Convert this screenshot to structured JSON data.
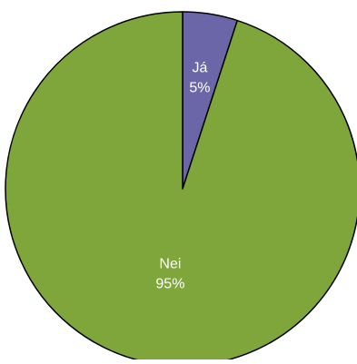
{
  "chart_data": {
    "type": "pie",
    "start_angle_deg": 0,
    "direction": "clockwise",
    "slices": [
      {
        "label": "Já",
        "value": 5,
        "value_label": "5%",
        "color": "#6A66A8"
      },
      {
        "label": "Nei",
        "value": 95,
        "value_label": "95%",
        "color": "#7FA63A"
      }
    ],
    "stroke_color": "#000000",
    "legend": "none"
  }
}
